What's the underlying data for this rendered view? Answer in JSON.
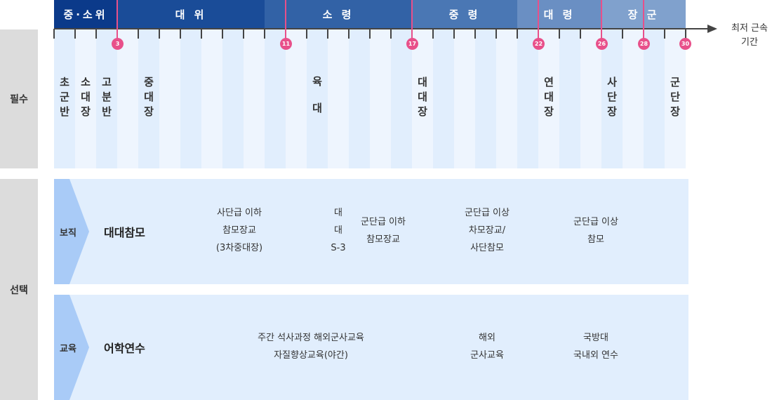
{
  "sections": {
    "required": "필수",
    "optional": "선택"
  },
  "ranks": [
    {
      "label": "중·소위",
      "color": "#0b3a8a"
    },
    {
      "label": "대 위",
      "color": "#1a4c98"
    },
    {
      "label": "소 령",
      "color": "#3262a6"
    },
    {
      "label": "중 령",
      "color": "#4a77b4"
    },
    {
      "label": "대 령",
      "color": "#6a8fc3"
    },
    {
      "label": "장 군",
      "color": "#80a1cd"
    }
  ],
  "axis_label": [
    "최저 근속",
    "기간"
  ],
  "milestones": [
    "3",
    "11",
    "17",
    "22",
    "26",
    "28",
    "30"
  ],
  "required_items": [
    "초\n군\n반",
    "소\n대\n장",
    "고\n분\n반",
    "중\n대\n장",
    "육\n\n대",
    "대\n대\n장",
    "연\n대\n장",
    "사\n단\n장",
    "군\n단\n장"
  ],
  "rows": [
    {
      "tag": "보직",
      "title": "대대참모",
      "cells": [
        [
          "사단급 이하",
          "참모장교",
          "(3차중대장)"
        ],
        [
          "대",
          "대",
          "S-3"
        ],
        [
          "군단급 이하",
          "참모장교"
        ],
        [
          "군단급 이상",
          "차모장교/",
          "사단참모"
        ],
        [
          "군단급 이상",
          "참모"
        ]
      ]
    },
    {
      "tag": "교육",
      "title": "어학연수",
      "cells": [
        [
          "주간 석사과정 해외군사교육",
          "자질향상교육(야간)"
        ],
        [
          "해외",
          "군사교육"
        ],
        [
          "국방대",
          "국내외 연수"
        ]
      ]
    }
  ],
  "colors": {
    "pin": "#e8508a",
    "band": "#e1eefd",
    "chevron": "#a9cbf7"
  }
}
